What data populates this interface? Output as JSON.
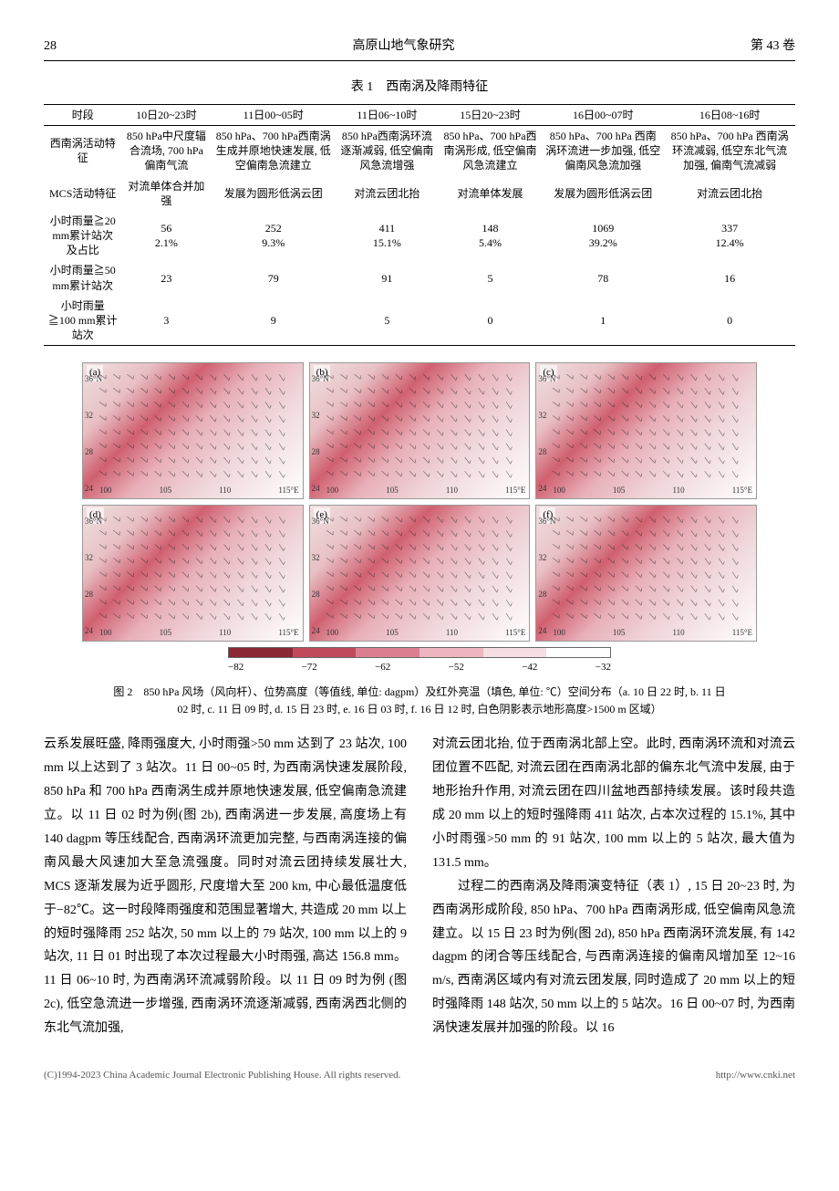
{
  "header": {
    "page_number": "28",
    "journal_title": "高原山地气象研究",
    "volume": "第 43 卷"
  },
  "table": {
    "caption": "表 1　西南涡及降雨特征",
    "columns": [
      "时段",
      "10日20~23时",
      "11日00~05时",
      "11日06~10时",
      "15日20~23时",
      "16日00~07时",
      "16日08~16时"
    ],
    "rows": [
      [
        "西南涡活动特征",
        "850 hPa中尺度辐合流场, 700 hPa偏南气流",
        "850 hPa、700 hPa西南涡生成并原地快速发展, 低空偏南急流建立",
        "850 hPa西南涡环流逐渐减弱, 低空偏南风急流增强",
        "850 hPa、700 hPa西南涡形成, 低空偏南风急流建立",
        "850 hPa、700 hPa 西南涡环流进一步加强, 低空偏南风急流加强",
        "850 hPa、700 hPa 西南涡环流减弱, 低空东北气流加强, 偏南气流减弱"
      ],
      [
        "MCS活动特征",
        "对流单体合并加强",
        "发展为圆形低涡云团",
        "对流云团北抬",
        "对流单体发展",
        "发展为圆形低涡云团",
        "对流云团北抬"
      ],
      [
        "小时雨量≧20 mm累计站次及占比",
        "56\n2.1%",
        "252\n9.3%",
        "411\n15.1%",
        "148\n5.4%",
        "1069\n39.2%",
        "337\n12.4%"
      ],
      [
        "小时雨量≧50 mm累计站次",
        "23",
        "79",
        "91",
        "5",
        "78",
        "16"
      ],
      [
        "小时雨量≧100 mm累计站次",
        "3",
        "9",
        "5",
        "0",
        "1",
        "0"
      ]
    ]
  },
  "figure": {
    "panels": [
      "(a)",
      "(b)",
      "(c)",
      "(d)",
      "(e)",
      "(f)"
    ],
    "y_ticks": [
      "36°N",
      "32",
      "28",
      "24"
    ],
    "x_ticks": [
      "100",
      "105",
      "110",
      "115°E"
    ],
    "colorbar_values": [
      "−82",
      "−72",
      "−62",
      "−52",
      "−42",
      "−32"
    ],
    "colorbar_colors": [
      "#8b2838",
      "#c04a5c",
      "#db7f90",
      "#edb5c0",
      "#f5dde2",
      "#ffffff"
    ],
    "caption_line1": "图 2　850 hPa 风场（风向杆）、位势高度（等值线, 单位: dagpm）及红外亮温（填色, 单位: ℃）空间分布（a. 10 日 22 时, b. 11 日",
    "caption_line2": "02 时, c. 11 日 09 时, d. 15 日 23 时, e. 16 日 03 时, f. 16 日 12 时, 白色阴影表示地形高度>1500 m 区域）"
  },
  "body": {
    "left": "云系发展旺盛, 降雨强度大, 小时雨强>50 mm 达到了 23 站次, 100 mm 以上达到了 3 站次。11 日 00~05 时, 为西南涡快速发展阶段, 850 hPa 和 700 hPa 西南涡生成并原地快速发展, 低空偏南急流建立。以 11 日 02 时为例(图 2b), 西南涡进一步发展, 高度场上有 140 dagpm 等压线配合, 西南涡环流更加完整, 与西南涡连接的偏南风最大风速加大至急流强度。同时对流云团持续发展壮大, MCS 逐渐发展为近乎圆形, 尺度增大至 200 km, 中心最低温度低于−82℃。这一时段降雨强度和范围显著增大, 共造成 20 mm 以上的短时强降雨 252 站次, 50 mm 以上的 79 站次, 100 mm 以上的 9 站次, 11 日 01 时出现了本次过程最大小时雨强, 高达 156.8 mm。11 日 06~10 时, 为西南涡环流减弱阶段。以 11 日 09 时为例 (图 2c), 低空急流进一步增强, 西南涡环流逐渐减弱, 西南涡西北侧的东北气流加强,",
    "right_p1": "对流云团北抬, 位于西南涡北部上空。此时, 西南涡环流和对流云团位置不匹配, 对流云团在西南涡北部的偏东北气流中发展, 由于地形抬升作用, 对流云团在四川盆地西部持续发展。该时段共造成 20 mm 以上的短时强降雨 411 站次, 占本次过程的 15.1%, 其中小时雨强>50 mm 的 91 站次, 100 mm 以上的 5 站次, 最大值为 131.5 mm。",
    "right_p2": "过程二的西南涡及降雨演变特征（表 1）, 15 日 20~23 时, 为西南涡形成阶段, 850 hPa、700 hPa 西南涡形成, 低空偏南风急流建立。以 15 日 23 时为例(图 2d), 850 hPa 西南涡环流发展, 有 142 dagpm 的闭合等压线配合, 与西南涡连接的偏南风增加至 12~16 m/s, 西南涡区域内有对流云团发展, 同时造成了 20 mm 以上的短时强降雨 148 站次, 50 mm 以上的 5 站次。16 日 00~07 时, 为西南涡快速发展并加强的阶段。以 16"
  },
  "footer": {
    "copyright": "(C)1994-2023 China Academic Journal Electronic Publishing House. All rights reserved.",
    "url": "http://www.cnki.net"
  }
}
